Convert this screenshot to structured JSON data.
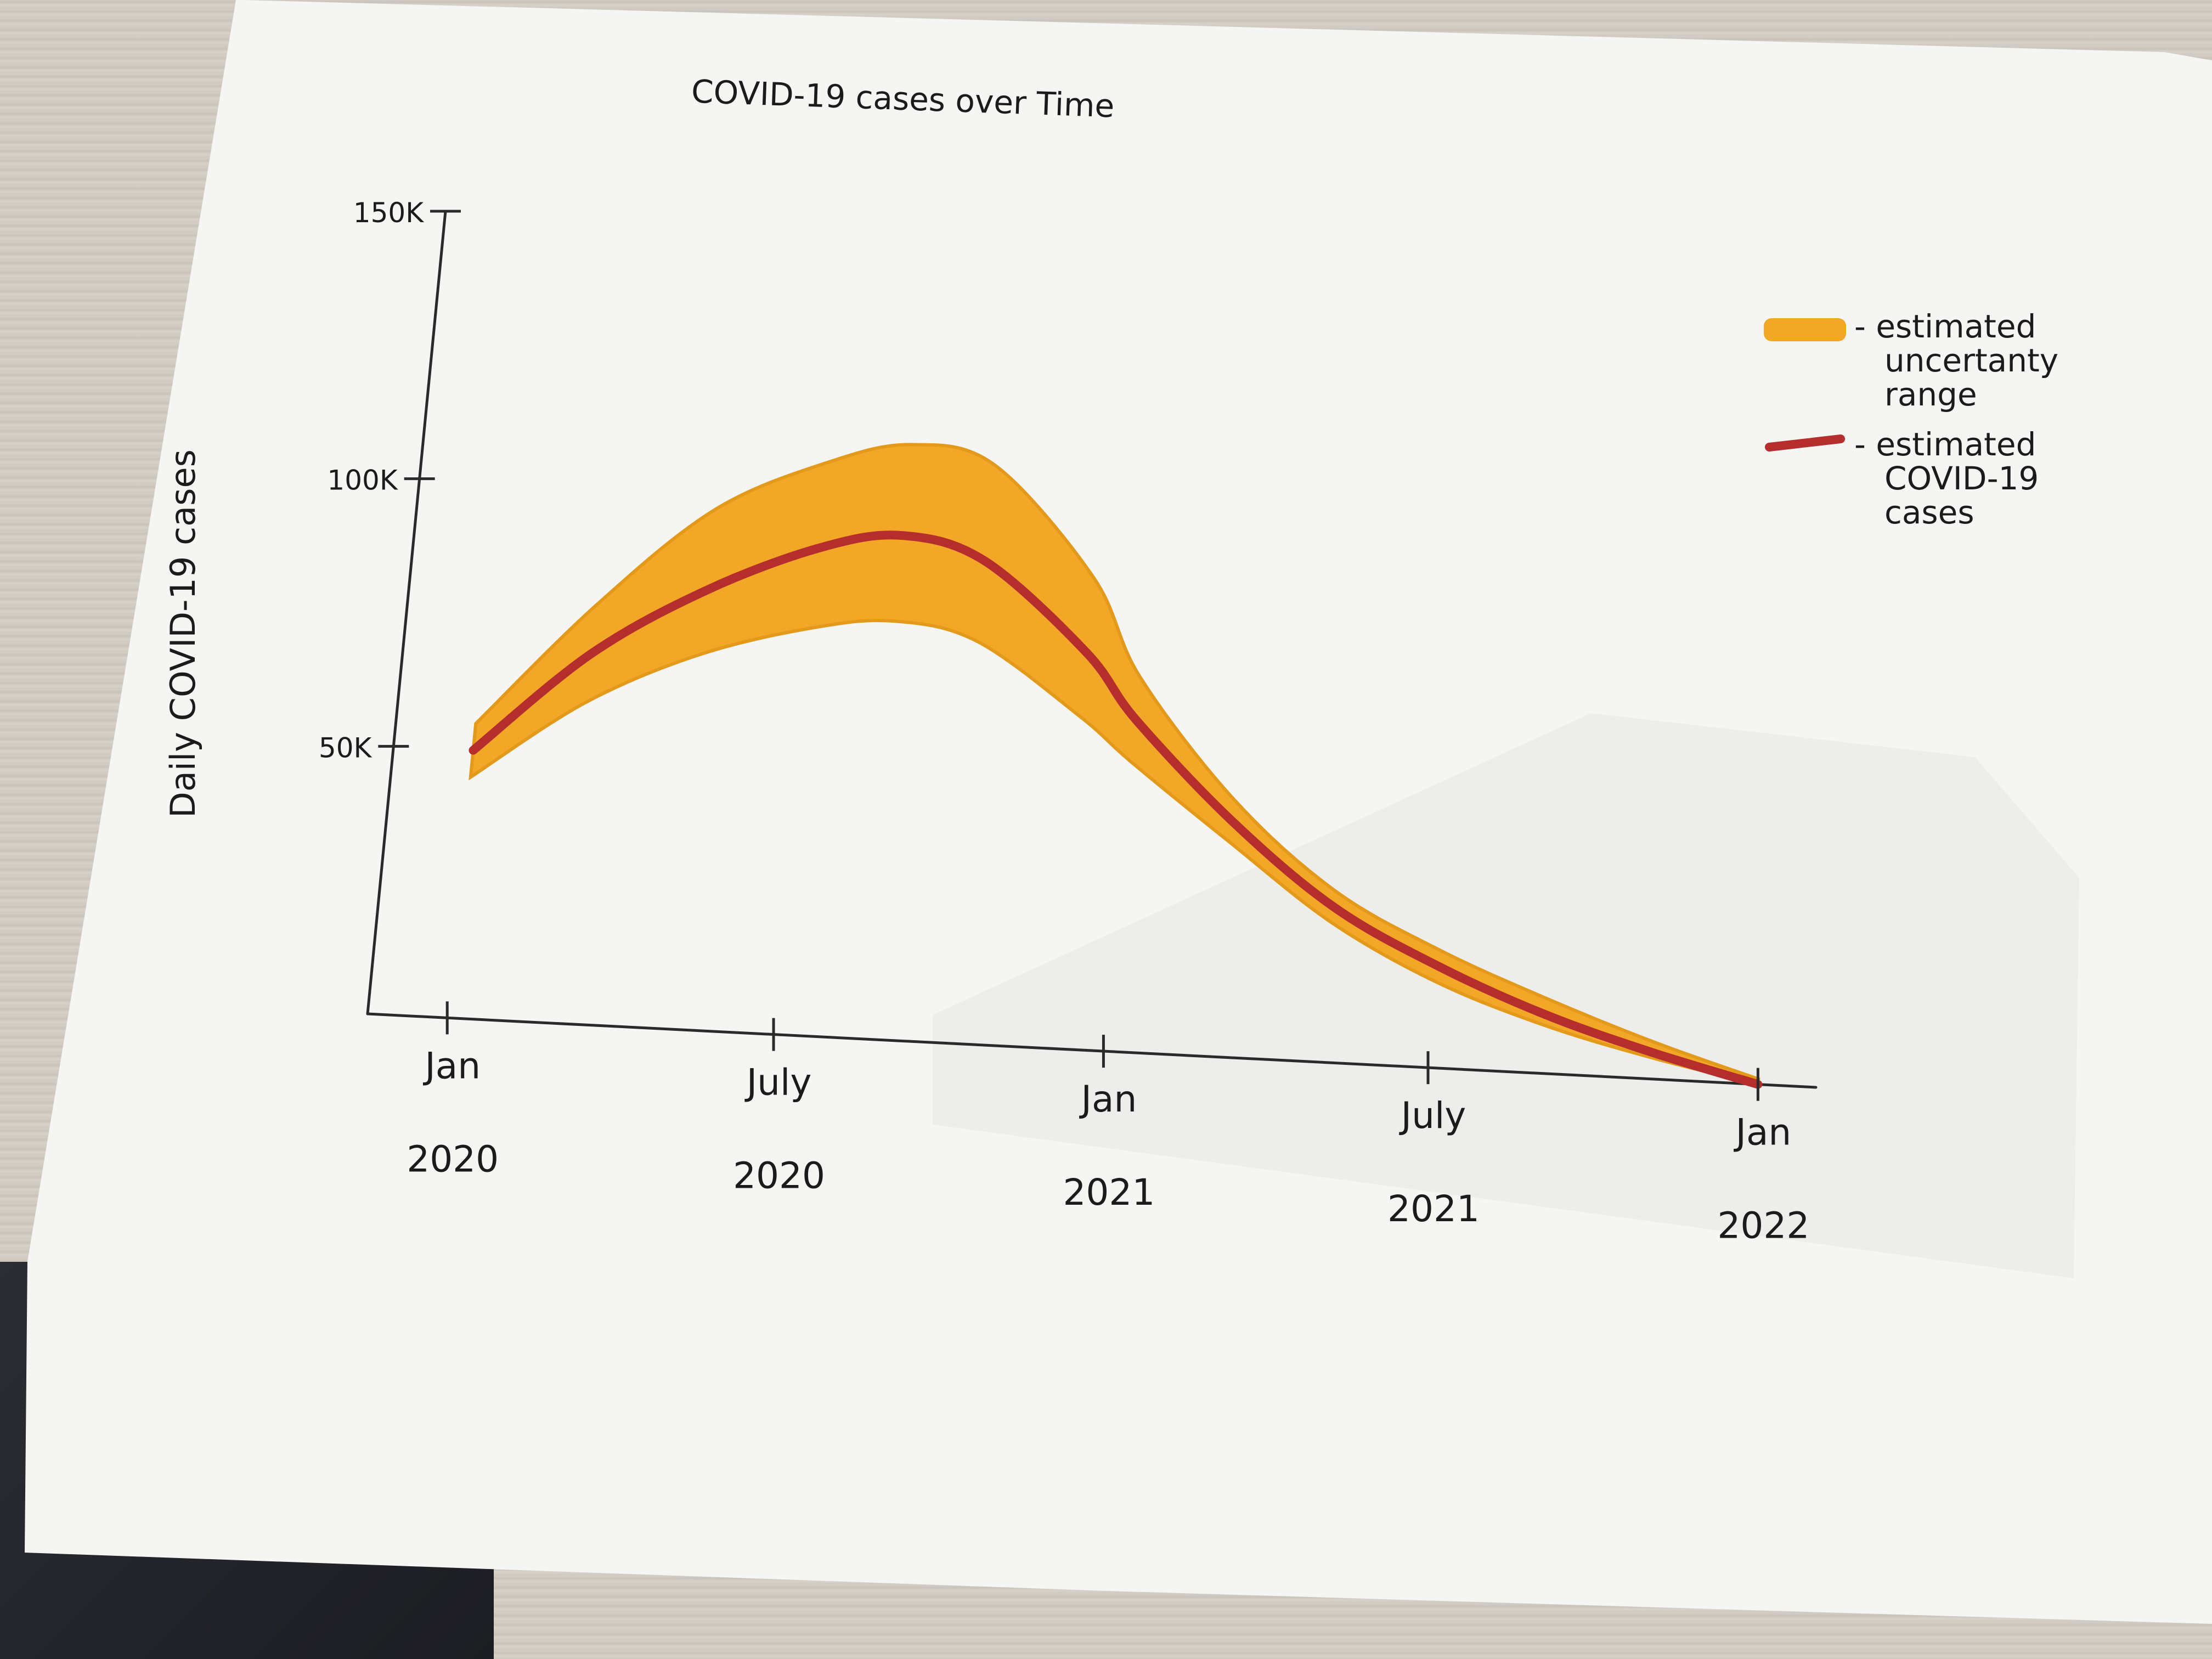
{
  "chart_data": {
    "type": "area",
    "title": "COVID-19 cases over Time",
    "ylabel": "Daily COVID-19 cases",
    "xlabel": "",
    "y_ticks": [
      {
        "value": 50000,
        "label": "50K"
      },
      {
        "value": 100000,
        "label": "100K"
      },
      {
        "value": 150000,
        "label": "150K"
      }
    ],
    "x_ticks": [
      {
        "date": "2020-01-01",
        "line1": "Jan",
        "line2": "2020"
      },
      {
        "date": "2020-07-01",
        "line1": "July",
        "line2": "2020"
      },
      {
        "date": "2021-01-01",
        "line1": "Jan",
        "line2": "2021"
      },
      {
        "date": "2021-07-01",
        "line1": "July",
        "line2": "2021"
      },
      {
        "date": "2022-01-01",
        "line1": "Jan",
        "line2": "2022"
      }
    ],
    "ylim": [
      0,
      150000
    ],
    "xlim": [
      "2020-01-01",
      "2022-01-01"
    ],
    "series": [
      {
        "name": "estimated COVID-19 cases",
        "kind": "line",
        "color": "#b52d2d",
        "points": [
          [
            "2020-01-01",
            50000
          ],
          [
            "2020-03-01",
            69000
          ],
          [
            "2020-05-01",
            82000
          ],
          [
            "2020-07-01",
            91000
          ],
          [
            "2020-08-15",
            94000
          ],
          [
            "2020-10-01",
            90000
          ],
          [
            "2020-12-01",
            74000
          ],
          [
            "2021-01-01",
            62000
          ],
          [
            "2021-03-01",
            44000
          ],
          [
            "2021-05-01",
            29000
          ],
          [
            "2021-07-01",
            19000
          ],
          [
            "2021-09-01",
            11000
          ],
          [
            "2021-11-01",
            5000
          ],
          [
            "2022-01-01",
            0
          ]
        ]
      },
      {
        "name": "estimated uncertainty range",
        "kind": "band",
        "color": "#f2a826",
        "upper": [
          [
            "2020-01-01",
            55000
          ],
          [
            "2020-03-01",
            78000
          ],
          [
            "2020-05-01",
            97000
          ],
          [
            "2020-07-01",
            107000
          ],
          [
            "2020-08-15",
            111000
          ],
          [
            "2020-10-01",
            108000
          ],
          [
            "2020-12-01",
            88000
          ],
          [
            "2021-01-01",
            70000
          ],
          [
            "2021-03-01",
            48000
          ],
          [
            "2021-05-01",
            32000
          ],
          [
            "2021-07-01",
            22000
          ],
          [
            "2021-09-01",
            14000
          ],
          [
            "2021-11-01",
            7000
          ],
          [
            "2022-01-01",
            1000
          ]
        ],
        "lower": [
          [
            "2020-01-01",
            45000
          ],
          [
            "2020-03-01",
            60000
          ],
          [
            "2020-05-01",
            70000
          ],
          [
            "2020-07-01",
            76000
          ],
          [
            "2020-08-15",
            78000
          ],
          [
            "2020-10-01",
            75000
          ],
          [
            "2020-12-01",
            62000
          ],
          [
            "2021-01-01",
            54000
          ],
          [
            "2021-03-01",
            40000
          ],
          [
            "2021-05-01",
            26000
          ],
          [
            "2021-07-01",
            16000
          ],
          [
            "2021-09-01",
            9000
          ],
          [
            "2021-11-01",
            4000
          ],
          [
            "2022-01-01",
            0
          ]
        ]
      }
    ],
    "legend": {
      "position": "top-right",
      "items": [
        {
          "label_lines": [
            "- estimated",
            "uncertanty",
            "range"
          ],
          "color": "#f2a826",
          "swatch": "band"
        },
        {
          "label_lines": [
            "- estimated",
            "COVID-19",
            "cases"
          ],
          "color": "#b52d2d",
          "swatch": "line"
        }
      ]
    },
    "grid": false
  }
}
